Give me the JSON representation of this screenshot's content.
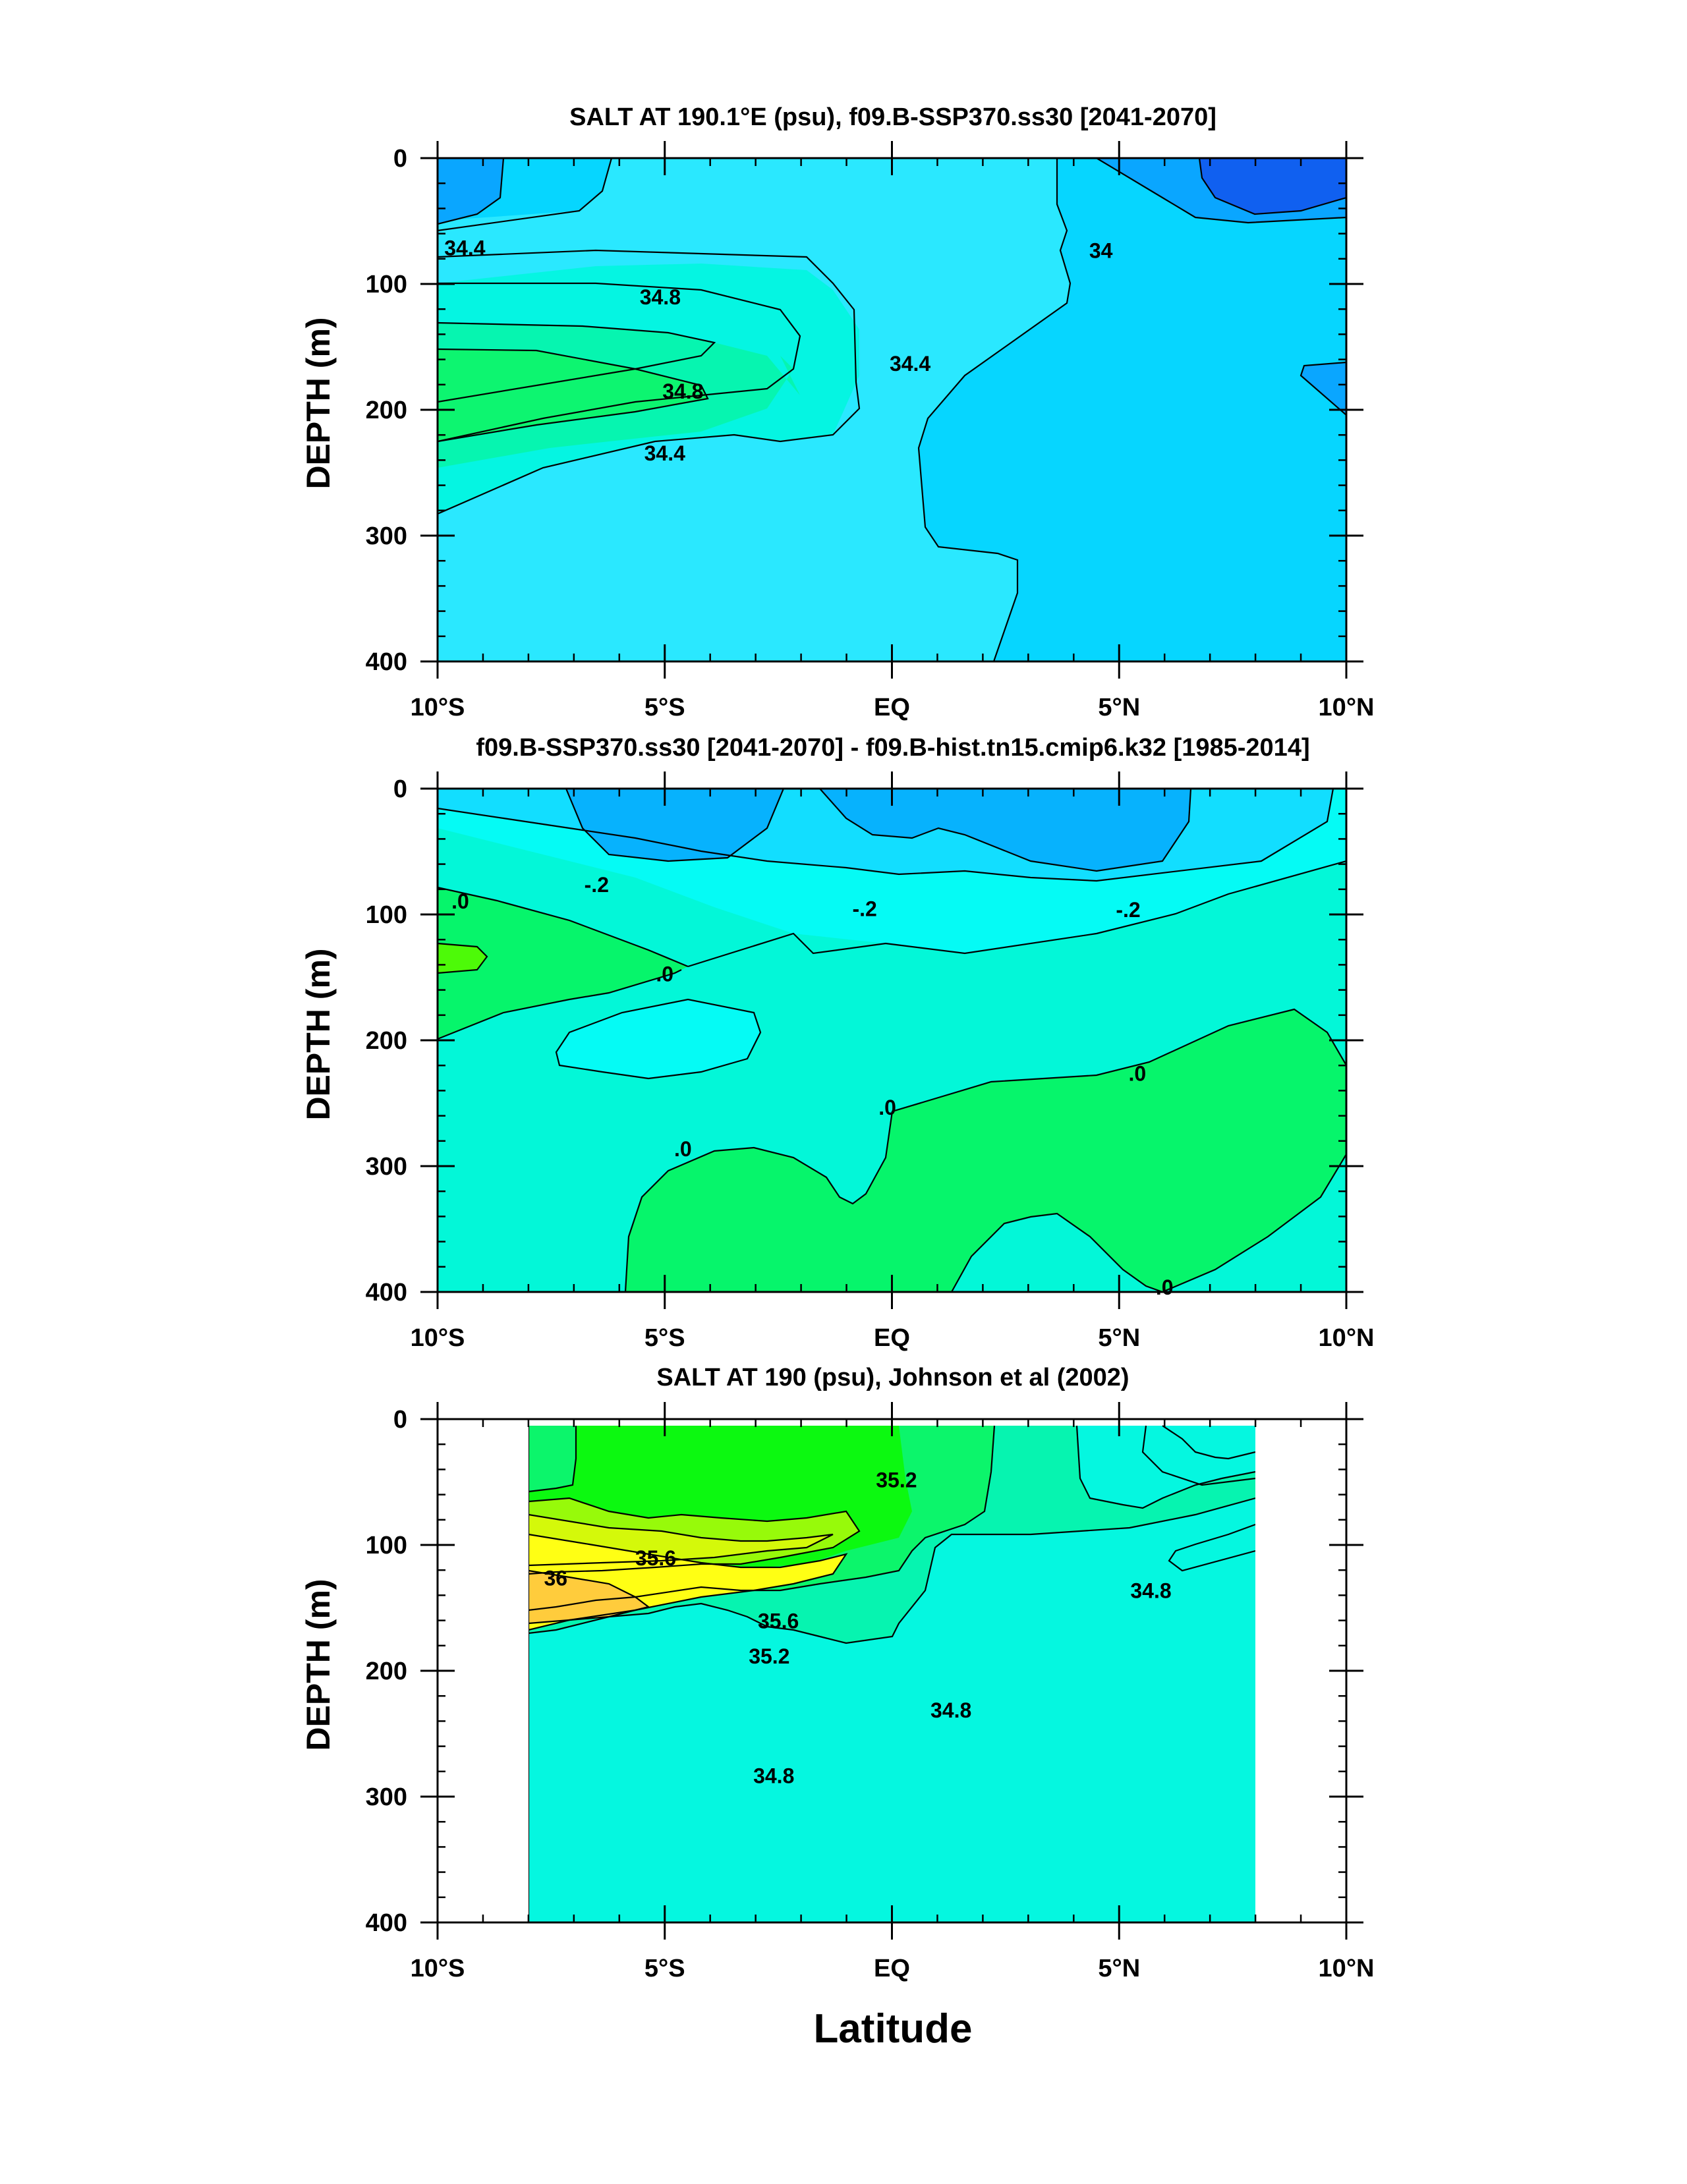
{
  "chart_data": [
    {
      "type": "contour",
      "title": "SALT AT 190.1°E (psu), f09.B-SSP370.ss30 [2041-2070]",
      "ylabel": "DEPTH (m)",
      "xlabel": "",
      "xlim": [
        -10,
        10
      ],
      "ylim": [
        400,
        0
      ],
      "xticks": [
        "10°S",
        "5°S",
        "EQ",
        "5°N",
        "10°N"
      ],
      "xtick_values": [
        -10,
        -5,
        0,
        5,
        10
      ],
      "yticks": [
        "0",
        "100",
        "200",
        "300",
        "400"
      ],
      "ytick_values": [
        0,
        100,
        200,
        300,
        400
      ],
      "contour_labels": [
        {
          "text": "34.4",
          "x": -9.4,
          "depth": 73
        },
        {
          "text": "34.8",
          "x": -5.1,
          "depth": 112
        },
        {
          "text": "34.8",
          "x": -4.6,
          "depth": 187
        },
        {
          "text": "34.4",
          "x": -5.0,
          "depth": 236
        },
        {
          "text": "34.4",
          "x": 0.4,
          "depth": 165
        },
        {
          "text": "34",
          "x": 4.6,
          "depth": 75
        }
      ],
      "fill_colors": {
        "below_34.0": "#1060f0",
        "34.0_34.2": "#0aa6ff",
        "34.2_34.4": "#06d6ff",
        "34.4_34.6": "#2ae8ff",
        "34.6_34.8": "#05f5e2",
        "34.8_35.0": "#06f5b0",
        "35.0_35.2": "#0df570"
      }
    },
    {
      "type": "contour",
      "title": "f09.B-SSP370.ss30 [2041-2070] - f09.B-hist.tn15.cmip6.k32 [1985-2014]",
      "ylabel": "DEPTH (m)",
      "xlabel": "",
      "xlim": [
        -10,
        10
      ],
      "ylim": [
        400,
        0
      ],
      "xticks": [
        "10°S",
        "5°S",
        "EQ",
        "5°N",
        "10°N"
      ],
      "xtick_values": [
        -10,
        -5,
        0,
        5,
        10
      ],
      "yticks": [
        "0",
        "100",
        "200",
        "300",
        "400"
      ],
      "ytick_values": [
        0,
        100,
        200,
        300,
        400
      ],
      "contour_labels": [
        {
          "text": ".0",
          "x": -9.5,
          "depth": 91
        },
        {
          "text": "-.2",
          "x": -6.5,
          "depth": 78
        },
        {
          "text": "-.2",
          "x": -0.6,
          "depth": 97
        },
        {
          "text": "-.2",
          "x": 5.2,
          "depth": 98
        },
        {
          "text": ".0",
          "x": -5.0,
          "depth": 149
        },
        {
          "text": ".0",
          "x": 5.4,
          "depth": 228
        },
        {
          "text": ".0",
          "x": -0.1,
          "depth": 255
        },
        {
          "text": ".0",
          "x": -4.6,
          "depth": 288
        },
        {
          "text": ".0",
          "x": 6.0,
          "depth": 398
        }
      ],
      "fill_colors": {
        "-0.4_-0.3": "#07b2fd",
        "-0.3_-0.2": "#12deff",
        "-0.2_-0.1": "#05fbf5",
        "-0.1_0.0": "#03f7d8",
        "0.0_0.1": "#06f56b",
        "0.1_0.2": "#4dfa08"
      }
    },
    {
      "type": "contour",
      "title": "SALT AT 190 (psu), Johnson et al (2002)",
      "ylabel": "DEPTH (m)",
      "xlabel": "Latitude",
      "xlim": [
        -10,
        10
      ],
      "ylim": [
        400,
        0
      ],
      "data_extent_x": [
        -8,
        8
      ],
      "xticks": [
        "10°S",
        "5°S",
        "EQ",
        "5°N",
        "10°N"
      ],
      "xtick_values": [
        -10,
        -5,
        0,
        5,
        10
      ],
      "yticks": [
        "0",
        "100",
        "200",
        "300",
        "400"
      ],
      "ytick_values": [
        0,
        100,
        200,
        300,
        400
      ],
      "contour_labels": [
        {
          "text": "35.2",
          "x": 0.1,
          "depth": 50
        },
        {
          "text": "35.6",
          "x": -5.2,
          "depth": 112
        },
        {
          "text": "36",
          "x": -7.4,
          "depth": 128
        },
        {
          "text": "35.6",
          "x": -2.5,
          "depth": 162
        },
        {
          "text": "35.2",
          "x": -2.7,
          "depth": 190
        },
        {
          "text": "34.8",
          "x": 1.3,
          "depth": 233
        },
        {
          "text": "34.8",
          "x": -2.6,
          "depth": 285
        },
        {
          "text": "34.8",
          "x": 5.7,
          "depth": 138
        }
      ],
      "fill_colors": {
        "34.6_34.8": "#05f7e0",
        "34.8_35.0": "#06f4b0",
        "35.0_35.2": "#0cf56b",
        "35.2_35.4": "#0cf910",
        "35.4_35.6": "#97fa0a",
        "35.6_35.8": "#d4f90a",
        "35.8_36.0": "#ffff14",
        "36.0_36.2": "#ffcc3c"
      }
    }
  ]
}
